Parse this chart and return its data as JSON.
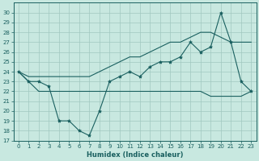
{
  "xlabel": "Humidex (Indice chaleur)",
  "background_color": "#c8e8e0",
  "grid_color": "#a0c8c0",
  "line_color": "#1a6060",
  "ylim": [
    17,
    31
  ],
  "xlim": [
    -0.5,
    23.5
  ],
  "yticks": [
    17,
    18,
    19,
    20,
    21,
    22,
    23,
    24,
    25,
    26,
    27,
    28,
    29,
    30
  ],
  "xticks": [
    0,
    1,
    2,
    3,
    4,
    5,
    6,
    7,
    8,
    9,
    10,
    11,
    12,
    13,
    14,
    15,
    16,
    17,
    18,
    19,
    20,
    21,
    22,
    23
  ],
  "main_data": [
    24,
    23,
    23,
    22.5,
    19,
    19,
    18,
    17.5,
    20,
    23,
    23.5,
    24,
    23.5,
    24.5,
    25,
    25,
    25.5,
    27,
    26,
    26.5,
    30,
    27,
    23,
    22
  ],
  "line1_data": [
    24,
    23.5,
    23.5,
    23.5,
    23.5,
    23.5,
    23.5,
    23.5,
    24,
    24.5,
    25,
    25.5,
    25.5,
    26,
    26.5,
    27,
    27,
    27.5,
    28,
    28,
    27.5,
    27,
    27,
    27
  ],
  "line2_data": [
    24,
    23,
    22,
    22,
    22,
    22,
    22,
    22,
    22,
    22,
    22,
    22,
    22,
    22,
    22,
    22,
    22,
    22,
    22,
    21.5,
    21.5,
    21.5,
    21.5,
    22
  ],
  "fontsize": 6,
  "marker": "*",
  "markersize": 3,
  "linewidth": 0.8
}
